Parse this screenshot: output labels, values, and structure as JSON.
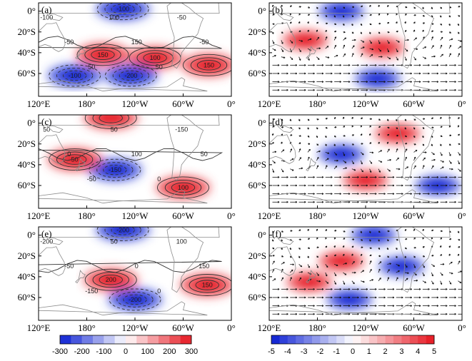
{
  "chart_data": [
    {
      "type": "heatmap",
      "panel": "(a)",
      "shading_range": [
        -300,
        300
      ],
      "overlay": "contours",
      "contour_labels": [
        "-100",
        "-50",
        "50",
        "100",
        "150",
        "50",
        "-50",
        "-50",
        "50",
        "100",
        "100",
        "50",
        "0",
        "-100",
        "-200",
        "100",
        "-150",
        "50",
        "-50",
        "0",
        "50",
        "-100",
        "-50"
      ],
      "features": [
        {
          "kind": "positive",
          "label": "150",
          "lon": -160,
          "lat": -42
        },
        {
          "kind": "positive",
          "label": "100",
          "lon": -95,
          "lat": -45
        },
        {
          "kind": "positive",
          "label": "150",
          "lon": -28,
          "lat": -52
        },
        {
          "kind": "negative",
          "label": "-200",
          "lon": -125,
          "lat": -62
        },
        {
          "kind": "negative",
          "label": "-100",
          "lon": 165,
          "lat": -62
        },
        {
          "kind": "negative",
          "label": "-100",
          "lon": -135,
          "lat": 2
        }
      ]
    },
    {
      "type": "heatmap",
      "panel": "(b)",
      "shading_range": [
        -5,
        5
      ],
      "overlay": "vectors",
      "features": [
        {
          "kind": "negative",
          "lon": -150,
          "lat": 0
        },
        {
          "kind": "positive",
          "lon": -100,
          "lat": -35
        },
        {
          "kind": "positive",
          "lon": 165,
          "lat": -28
        },
        {
          "kind": "negative",
          "lon": -105,
          "lat": -65
        }
      ]
    },
    {
      "type": "heatmap",
      "panel": "(c)",
      "shading_range": [
        -300,
        300
      ],
      "overlay": "contours",
      "contour_labels": [
        "50",
        "0",
        "-50",
        "50",
        "100",
        "0",
        "-150",
        "50",
        "0",
        "0",
        "100",
        "-100",
        "0",
        "-100",
        "50",
        "50",
        "0",
        "0"
      ],
      "features": [
        {
          "kind": "positive",
          "lon": -150,
          "lat": 5
        },
        {
          "kind": "negative",
          "label": "-150",
          "lon": -145,
          "lat": -45
        },
        {
          "kind": "positive",
          "label": "100",
          "lon": -60,
          "lat": -62
        },
        {
          "kind": "positive",
          "label": "50",
          "lon": 165,
          "lat": -35
        }
      ]
    },
    {
      "type": "heatmap",
      "panel": "(d)",
      "shading_range": [
        -5,
        5
      ],
      "overlay": "vectors",
      "features": [
        {
          "kind": "positive",
          "lon": -80,
          "lat": -10
        },
        {
          "kind": "negative",
          "lon": -150,
          "lat": -30
        },
        {
          "kind": "positive",
          "lon": -120,
          "lat": -55
        },
        {
          "kind": "negative",
          "lon": -30,
          "lat": -60
        }
      ]
    },
    {
      "type": "heatmap",
      "panel": "(e)",
      "shading_range": [
        -300,
        300
      ],
      "overlay": "contours",
      "contour_labels": [
        "-200",
        "-50",
        "-150",
        "50",
        "0",
        "0",
        "100",
        "150",
        "-150",
        "-150",
        "50",
        "100",
        "-200",
        "50",
        "50",
        "-50",
        "-150",
        "-150",
        "-100",
        "-100",
        "-150"
      ],
      "features": [
        {
          "kind": "positive",
          "label": "200",
          "lon": -150,
          "lat": -43
        },
        {
          "kind": "positive",
          "label": "150",
          "lon": -30,
          "lat": -48
        },
        {
          "kind": "negative",
          "label": "-200",
          "lon": -135,
          "lat": 5
        },
        {
          "kind": "negative",
          "label": "-200",
          "lon": -120,
          "lat": -62
        }
      ]
    },
    {
      "type": "heatmap",
      "panel": "(f)",
      "shading_range": [
        -5,
        5
      ],
      "overlay": "vectors",
      "features": [
        {
          "kind": "negative",
          "lon": -110,
          "lat": 0
        },
        {
          "kind": "negative",
          "lon": -75,
          "lat": -30
        },
        {
          "kind": "positive",
          "lon": -150,
          "lat": -25
        },
        {
          "kind": "positive",
          "lon": 170,
          "lat": -45
        },
        {
          "kind": "negative",
          "lon": -140,
          "lat": -62
        }
      ]
    }
  ],
  "axes": {
    "x_tick_labels": [
      "120°E",
      "180°",
      "120°W",
      "60°W",
      "0°"
    ],
    "y_tick_labels": [
      "0°",
      "20°S",
      "40°S",
      "60°S"
    ]
  },
  "panel_labels": [
    "(a)",
    "(b)",
    "(c)",
    "(d)",
    "(e)",
    "(f)"
  ],
  "colorbar_left": {
    "range": [
      -300,
      300
    ],
    "tick_labels": [
      "-300",
      "-200",
      "-100",
      "0",
      "100",
      "200",
      "300"
    ]
  },
  "colorbar_right": {
    "range": [
      -5,
      5
    ],
    "tick_labels": [
      "-5",
      "-4",
      "-3",
      "-2",
      "-1",
      "0",
      "1",
      "2",
      "3",
      "4",
      "5"
    ]
  },
  "colors": {
    "strong_negative": "#0a1ed2",
    "neutral": "#ffffff",
    "strong_positive": "#e6141e",
    "coastline": "#8c8c8c"
  }
}
